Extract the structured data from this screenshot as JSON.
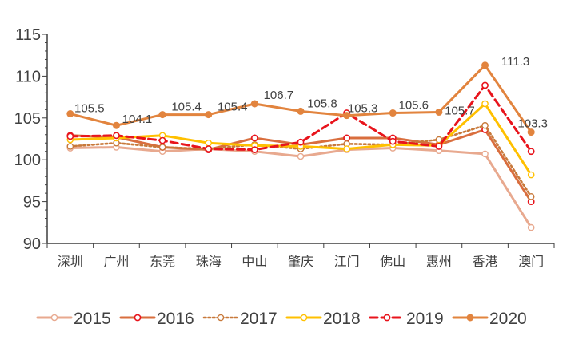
{
  "chart_data": {
    "type": "line",
    "categories": [
      "深圳",
      "广州",
      "东莞",
      "珠海",
      "中山",
      "肇庆",
      "江门",
      "佛山",
      "惠州",
      "香港",
      "澳门"
    ],
    "ylim": [
      90,
      115
    ],
    "yticks": [
      90,
      95,
      100,
      105,
      110,
      115
    ],
    "grid": false,
    "legend_position": "bottom",
    "series": [
      {
        "name": "2015",
        "values": [
          101.4,
          101.5,
          101.0,
          101.3,
          101.0,
          100.4,
          101.2,
          101.4,
          101.1,
          100.7,
          91.9
        ],
        "color": "#e8a98f",
        "line_style": "solid",
        "marker": "open-circle"
      },
      {
        "name": "2016",
        "values": [
          102.9,
          102.7,
          101.5,
          101.2,
          102.6,
          101.8,
          102.6,
          102.6,
          101.8,
          103.6,
          95.0
        ],
        "color": "#d96e3e",
        "line_style": "solid",
        "marker": "open-circle-red"
      },
      {
        "name": "2017",
        "values": [
          101.6,
          102.0,
          101.5,
          101.3,
          101.8,
          101.3,
          101.9,
          101.8,
          102.4,
          104.1,
          95.6
        ],
        "color": "#c8793a",
        "line_style": "dotted",
        "marker": "open-circle"
      },
      {
        "name": "2018",
        "values": [
          102.4,
          102.6,
          102.9,
          102.0,
          101.7,
          101.6,
          101.3,
          101.8,
          101.7,
          106.7,
          98.2
        ],
        "color": "#ffc000",
        "line_style": "solid",
        "marker": "open-circle"
      },
      {
        "name": "2019",
        "values": [
          102.8,
          102.9,
          102.3,
          101.3,
          101.2,
          102.1,
          105.6,
          102.2,
          101.6,
          108.9,
          101.0
        ],
        "color": "#e8141c",
        "line_style": "dashed",
        "marker": "open-circle-red"
      },
      {
        "name": "2020",
        "values": [
          105.5,
          104.1,
          105.4,
          105.4,
          106.7,
          105.8,
          105.3,
          105.6,
          105.7,
          111.3,
          103.3
        ],
        "labels": [
          "105.5",
          "104.1",
          "105.4",
          "105.4",
          "106.7",
          "105.8",
          "105.3",
          "105.6",
          "105.7",
          "111.3",
          "103.3"
        ],
        "color": "#e2843e",
        "line_style": "solid",
        "marker": "filled-circle"
      }
    ]
  }
}
